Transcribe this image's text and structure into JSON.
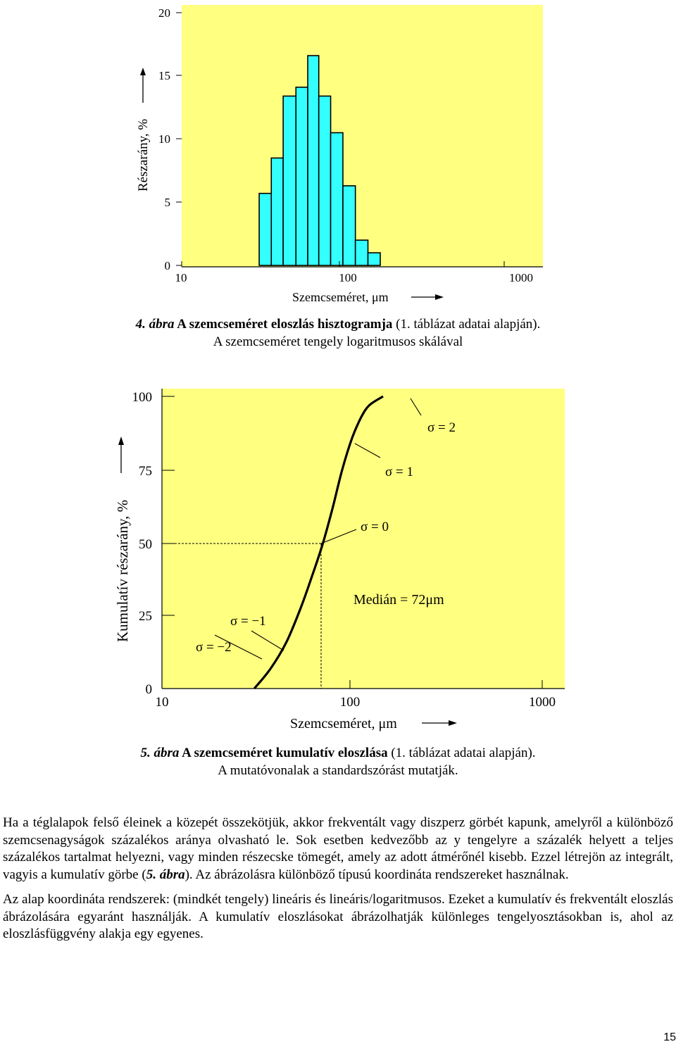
{
  "figure4": {
    "ylabel": "Részarány, %",
    "xlabel": "Szemcseméret, μm",
    "caption_num": "4. ábra",
    "caption_title": "A szemcseméret eloszlás hisztogramja",
    "caption_rest": " (1. táblázat adatai alapján).",
    "caption_line2": "A szemcseméret tengely logaritmusos skálával"
  },
  "figure5": {
    "ylabel": "Kumulatív részarány, %",
    "xlabel": "Szemcseméret, μm",
    "median_label": "Medián = 72μm",
    "sigma_labels": [
      "σ = −2",
      "σ = −1",
      "σ = 0",
      "σ = 1",
      "σ = 2"
    ],
    "caption_num": "5. ábra",
    "caption_title": "A szemcseméret kumulatív eloszlása",
    "caption_rest": " (1. táblázat adatai alapján).",
    "caption_line2": "A mutatóvonalak a standardszórást mutatják."
  },
  "chart_data": [
    {
      "type": "bar",
      "ylabel": "Részarány, %",
      "xlabel": "Szemcseméret, μm",
      "xscale": "log",
      "xlim": [
        10,
        1000
      ],
      "ylim": [
        0,
        20
      ],
      "x_ticks": [
        "10",
        "100",
        "1000"
      ],
      "y_ticks": [
        "0",
        "5",
        "10",
        "15",
        "20"
      ],
      "bins": [
        {
          "from": 31,
          "to": 37,
          "value": 5.7
        },
        {
          "from": 37,
          "to": 44,
          "value": 8.5
        },
        {
          "from": 44,
          "to": 53,
          "value": 13.4
        },
        {
          "from": 53,
          "to": 63,
          "value": 14.1
        },
        {
          "from": 63,
          "to": 74,
          "value": 16.6
        },
        {
          "from": 74,
          "to": 88,
          "value": 13.4
        },
        {
          "from": 88,
          "to": 105,
          "value": 10.5
        },
        {
          "from": 105,
          "to": 125,
          "value": 6.3
        },
        {
          "from": 125,
          "to": 149,
          "value": 2.0
        },
        {
          "from": 149,
          "to": 177,
          "value": 1.0
        }
      ],
      "background": "#ffff80",
      "bar_color": "#33ffff"
    },
    {
      "type": "line",
      "ylabel": "Kumulatív részarány, %",
      "xlabel": "Szemcseméret, μm",
      "xscale": "log",
      "xlim": [
        10,
        1000
      ],
      "ylim": [
        0,
        100
      ],
      "x_ticks": [
        "10",
        "100",
        "1000"
      ],
      "y_ticks": [
        "0",
        "25",
        "50",
        "75",
        "100"
      ],
      "series": [
        {
          "x": [
            31,
            38,
            46,
            55,
            64,
            72,
            81,
            91,
            103,
            115,
            127,
            150
          ],
          "y": [
            0,
            7,
            16,
            28,
            40,
            50,
            62,
            75,
            86,
            93,
            97,
            100
          ]
        }
      ],
      "median": 72,
      "background": "#ffff80"
    }
  ],
  "text": {
    "p1": "Ha a téglalapok felső éleinek a közepét összekötjük, akkor frekventált vagy diszperz görbét kapunk, amelyről a különböző szemcsenagyságok százalékos aránya olvasható le. Sok esetben kedvezőbb az y tengelyre a százalék helyett a teljes százalékos tartalmat helyezni, vagy minden részecske tömegét, amely az adott átmérőnél kisebb. Ezzel létrejön az integrált, vagyis a kumulatív görbe (",
    "p1_ref": "5. ábra",
    "p1_end": "). Az ábrázolásra különböző típusú koordináta rendszereket használnak.",
    "p2": "Az alap koordináta rendszerek: (mindkét tengely) lineáris és lineáris/logaritmusos. Ezeket a kumulatív és frekventált eloszlás ábrázolására egyaránt használják. A kumulatív eloszlásokat ábrázolhatják különleges tengelyosztásokban is, ahol az eloszlásfüggvény alakja egy egyenes."
  },
  "page_number": "15"
}
